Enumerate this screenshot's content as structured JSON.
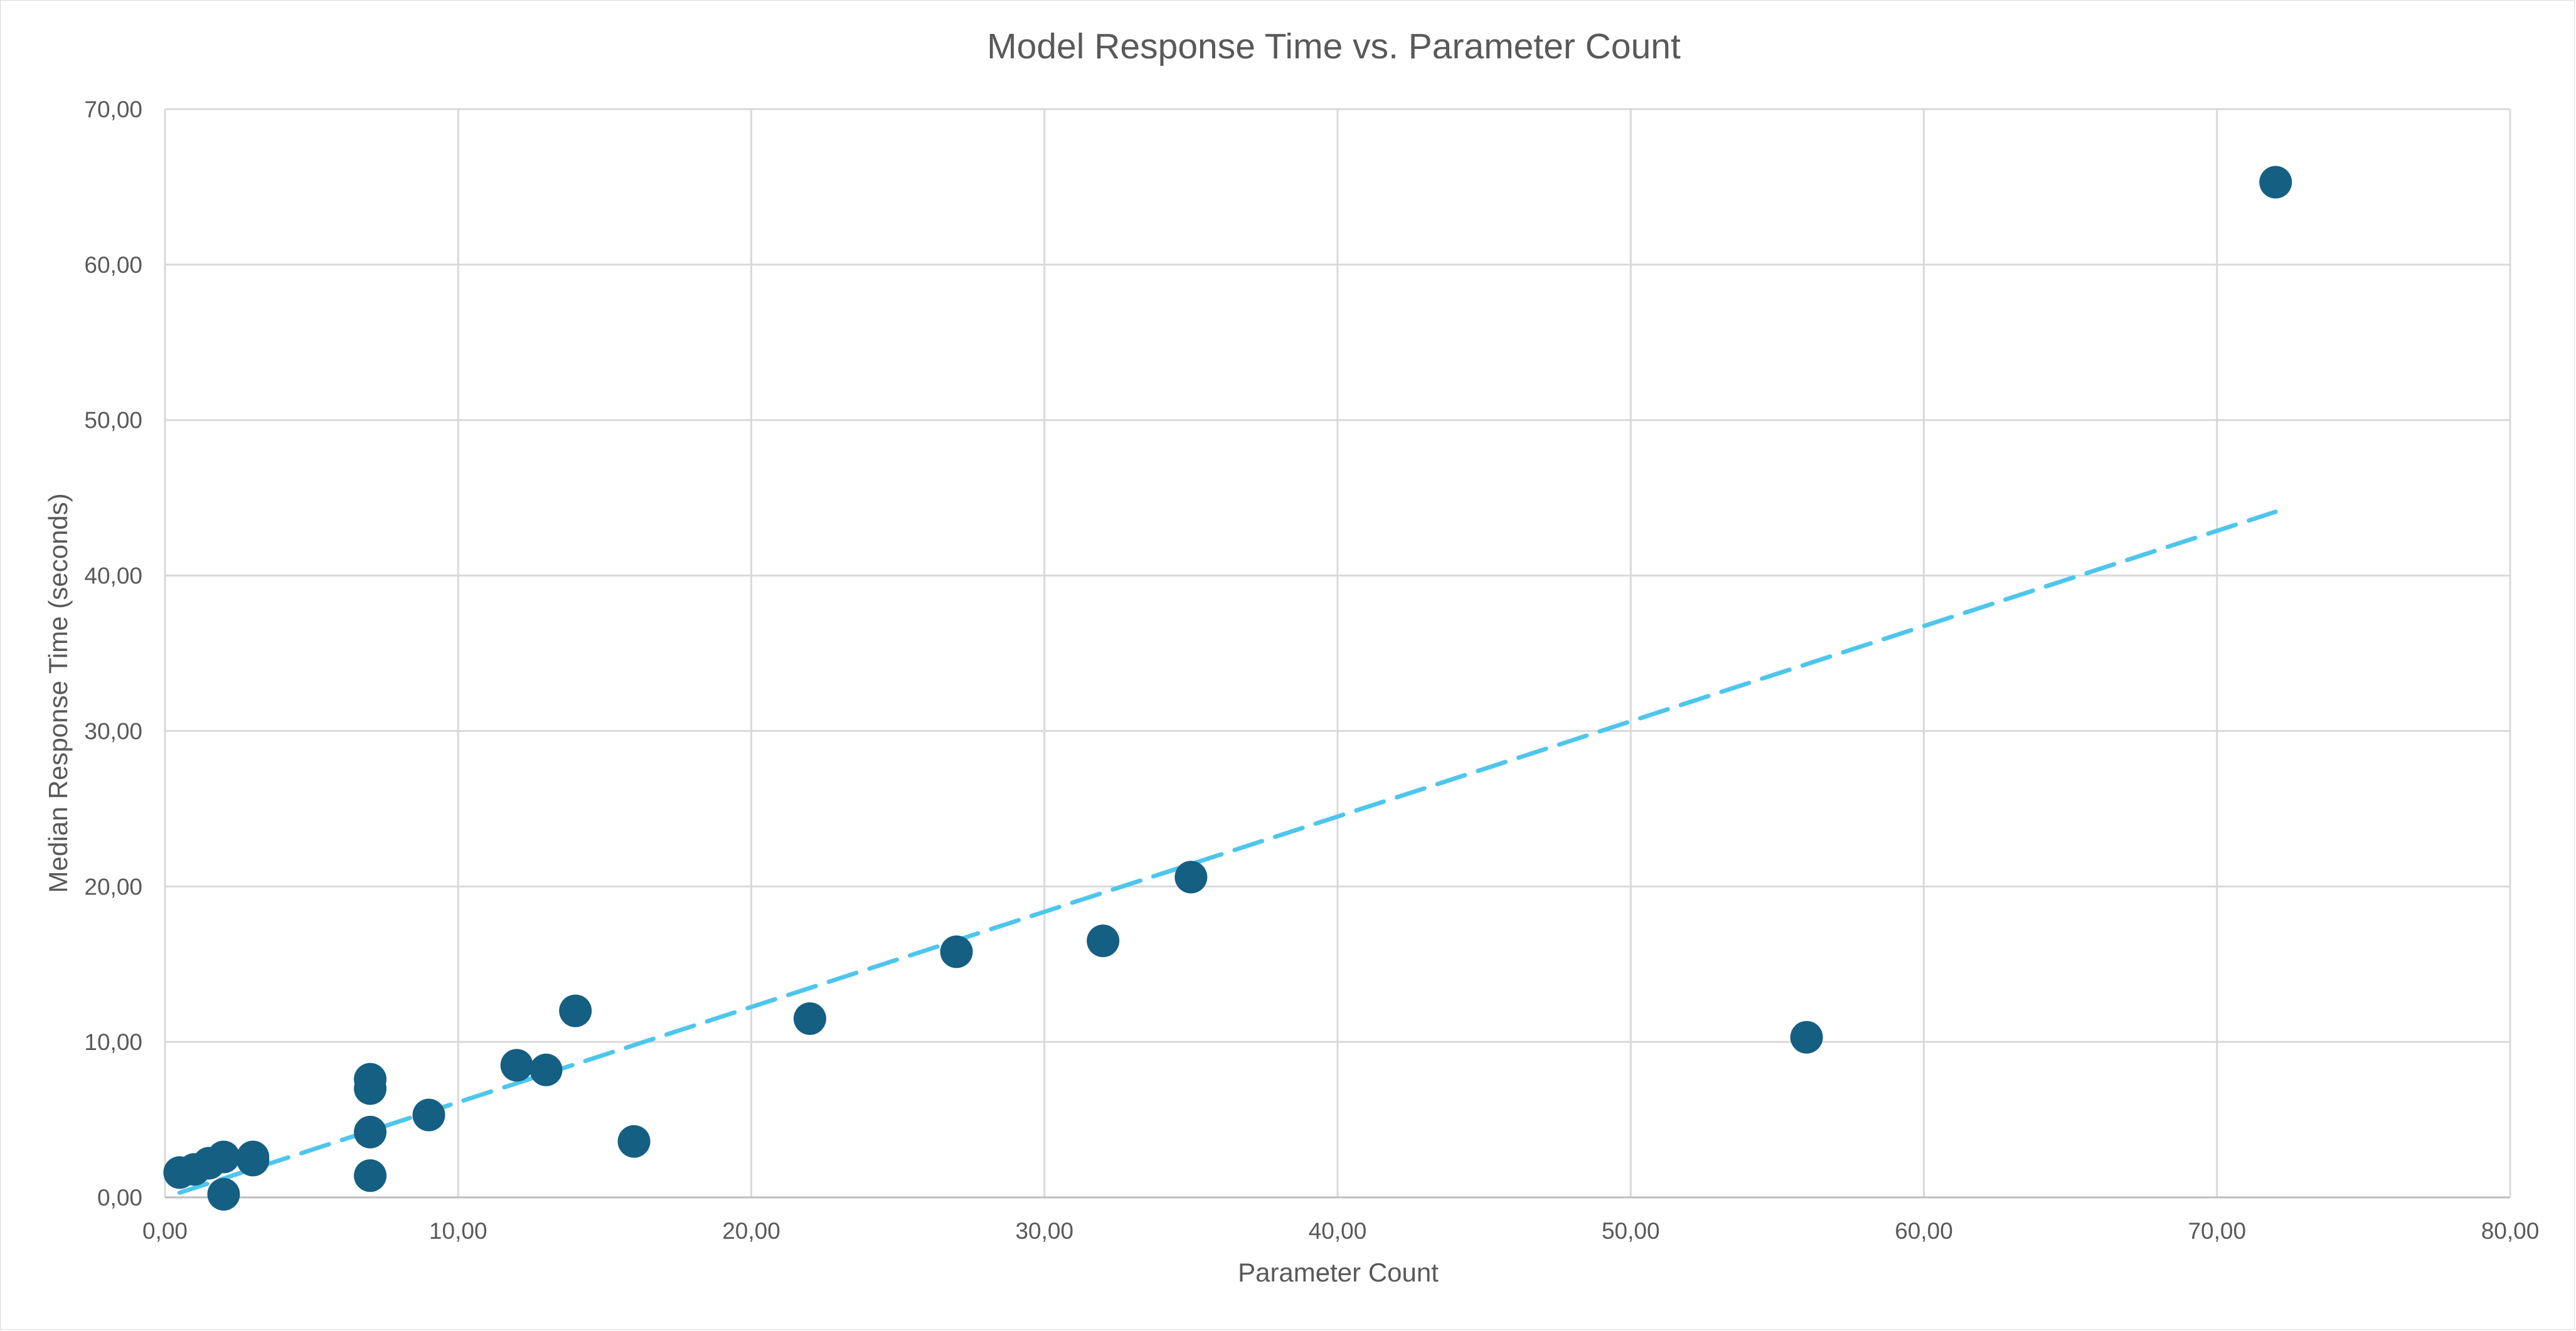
{
  "chart_data": {
    "type": "scatter",
    "title": "Model Response Time vs. Parameter Count",
    "xlabel": "Parameter Count",
    "ylabel": "Median Response Time (seconds)",
    "xlim": [
      0,
      80
    ],
    "ylim": [
      0,
      70
    ],
    "grid": true,
    "x_ticks": [
      "0,00",
      "10,00",
      "20,00",
      "30,00",
      "40,00",
      "50,00",
      "60,00",
      "70,00",
      "80,00"
    ],
    "y_ticks": [
      "0,00",
      "10,00",
      "20,00",
      "30,00",
      "40,00",
      "50,00",
      "60,00",
      "70,00"
    ],
    "colors": {
      "points": "#145f82",
      "trendline": "#4ec6ec",
      "grid": "#d9d9d9",
      "text": "#595959"
    },
    "trendline": {
      "style": "dashed",
      "type": "linear",
      "x_start": 0.5,
      "x_end": 72,
      "y_start": 0.3,
      "y_end": 44.1
    },
    "series": [
      {
        "points": [
          {
            "x": 0.5,
            "y": 1.6
          },
          {
            "x": 1.0,
            "y": 1.8
          },
          {
            "x": 1.5,
            "y": 2.2
          },
          {
            "x": 2.0,
            "y": 2.6
          },
          {
            "x": 2.0,
            "y": 0.2
          },
          {
            "x": 3.0,
            "y": 2.6
          },
          {
            "x": 3.0,
            "y": 2.4
          },
          {
            "x": 7.0,
            "y": 7.6
          },
          {
            "x": 7.0,
            "y": 7.0
          },
          {
            "x": 7.0,
            "y": 4.2
          },
          {
            "x": 7.0,
            "y": 1.4
          },
          {
            "x": 9.0,
            "y": 5.3
          },
          {
            "x": 12.0,
            "y": 8.5
          },
          {
            "x": 13.0,
            "y": 8.2
          },
          {
            "x": 14.0,
            "y": 12.0
          },
          {
            "x": 16.0,
            "y": 3.6
          },
          {
            "x": 22.0,
            "y": 11.5
          },
          {
            "x": 27.0,
            "y": 15.8
          },
          {
            "x": 32.0,
            "y": 16.5
          },
          {
            "x": 35.0,
            "y": 20.6
          },
          {
            "x": 56.0,
            "y": 10.3
          },
          {
            "x": 72.0,
            "y": 65.3
          }
        ]
      }
    ]
  }
}
